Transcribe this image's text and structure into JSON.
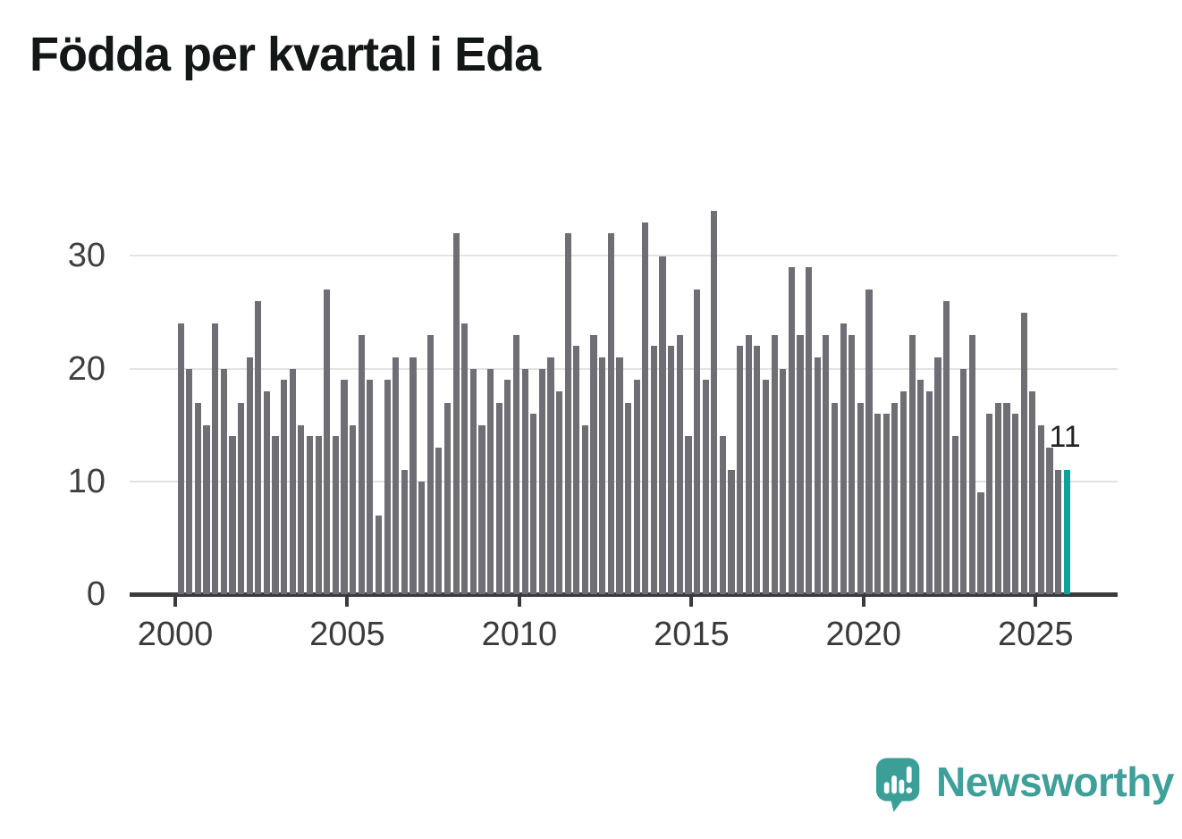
{
  "title": "Födda per kvartal i Eda",
  "chart_data": {
    "type": "bar",
    "title": "Födda per kvartal i Eda",
    "x_unit": "quarter",
    "start_year": 2000,
    "quarters_per_year": 4,
    "values": [
      24,
      20,
      17,
      15,
      24,
      20,
      14,
      17,
      21,
      26,
      18,
      14,
      19,
      20,
      15,
      14,
      14,
      27,
      14,
      19,
      15,
      23,
      19,
      7,
      19,
      21,
      11,
      21,
      10,
      23,
      13,
      17,
      32,
      24,
      20,
      15,
      20,
      17,
      19,
      23,
      20,
      16,
      20,
      21,
      18,
      32,
      22,
      15,
      23,
      21,
      32,
      21,
      17,
      19,
      33,
      22,
      30,
      22,
      23,
      14,
      27,
      19,
      34,
      14,
      11,
      22,
      23,
      22,
      19,
      23,
      20,
      29,
      23,
      29,
      21,
      23,
      17,
      24,
      23,
      17,
      27,
      16,
      16,
      17,
      18,
      23,
      19,
      18,
      21,
      26,
      14,
      20,
      23,
      9,
      16,
      17,
      17,
      16,
      25,
      18,
      15,
      13,
      11,
      11
    ],
    "x_tick_labels": [
      "2000",
      "2005",
      "2010",
      "2015",
      "2020",
      "2025"
    ],
    "y_tick_labels": [
      "0",
      "10",
      "20",
      "30"
    ],
    "y_gridlines": [
      10,
      20,
      30
    ],
    "ylim": [
      0,
      36
    ],
    "grid": "horizontal",
    "legend": "none",
    "bar_color": "#6e6e74",
    "highlight": {
      "index": 103,
      "value": 11,
      "label": "11",
      "color": "#0ba39b"
    }
  },
  "annotation": {
    "last_value_label": "11"
  },
  "branding": {
    "name": "Newsworthy",
    "icon": "newsworthy-speech-bubble-chart-icon",
    "text_color": "#3fa099",
    "icon_color": "#3b9f97"
  }
}
